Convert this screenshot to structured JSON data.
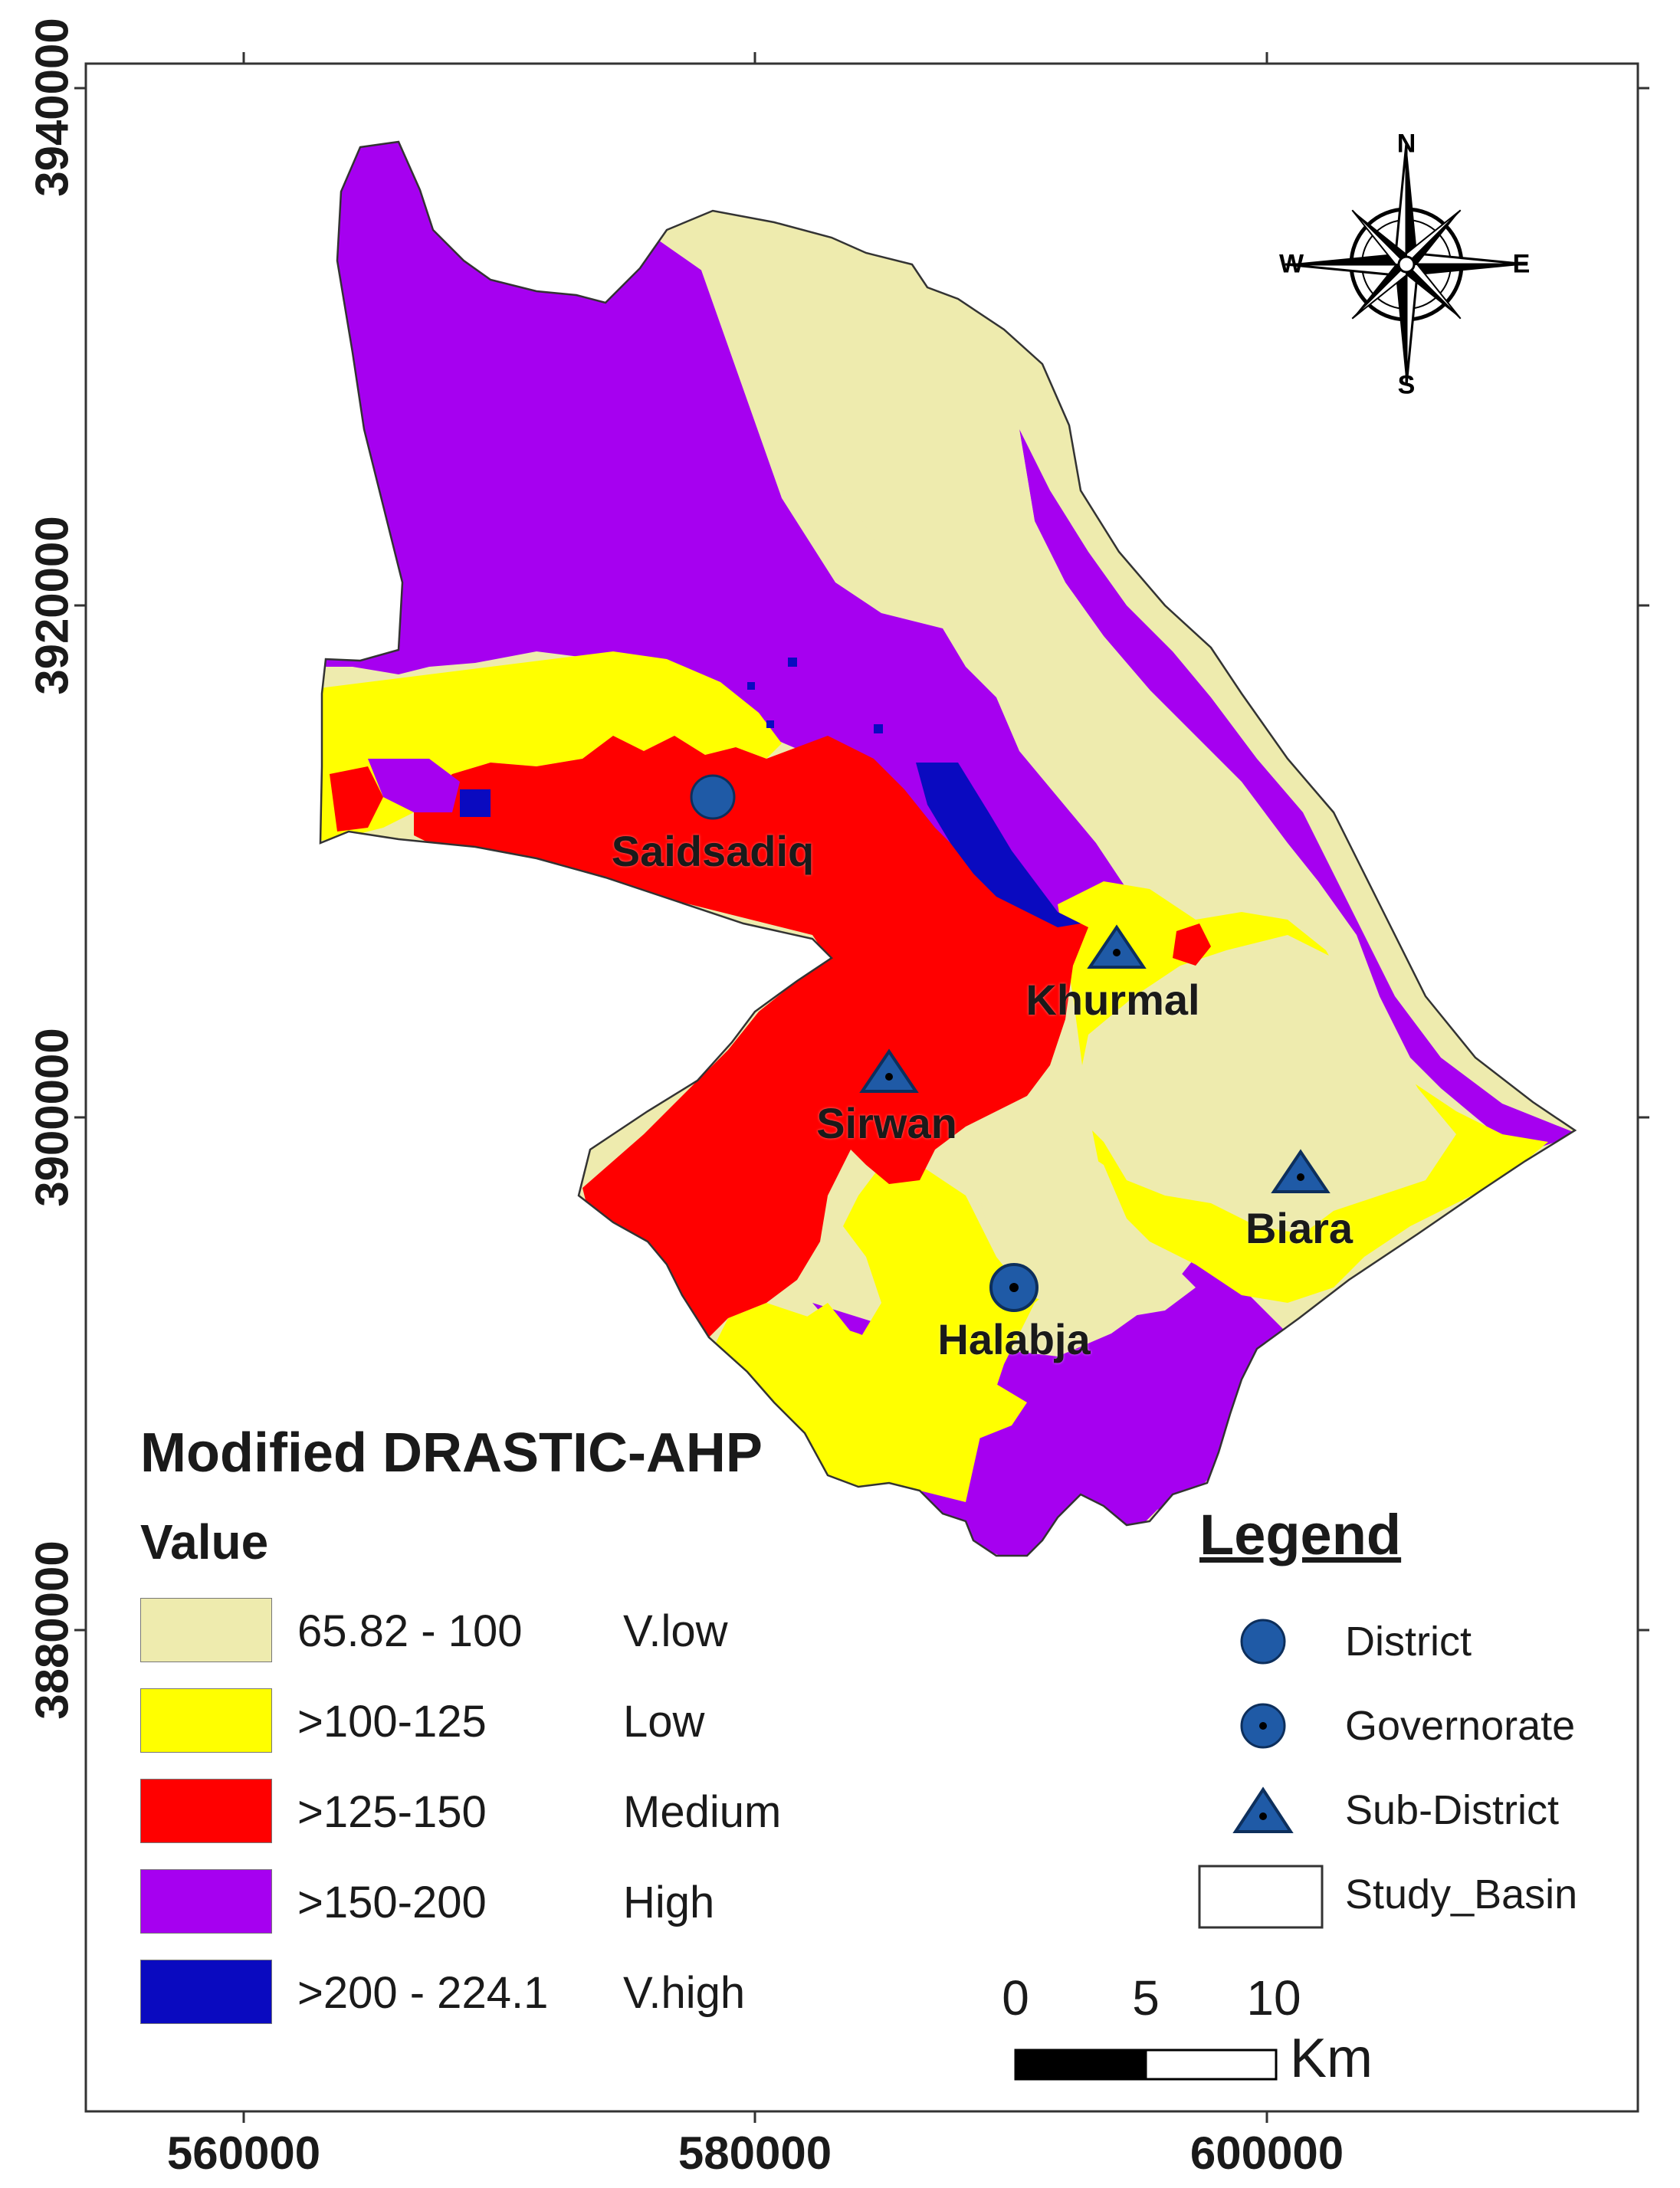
{
  "axes": {
    "x_labels": [
      "560000",
      "580000",
      "600000"
    ],
    "y_labels": [
      "3940000",
      "3920000",
      "3900000",
      "3880000"
    ]
  },
  "compass": {
    "n": "N",
    "s": "S",
    "e": "E",
    "w": "W"
  },
  "places": {
    "saidsadiq": "Saidsadiq",
    "khurmal": "Khurmal",
    "sirwan": "Sirwan",
    "biara": "Biara",
    "halabja": "Halabja"
  },
  "classification": {
    "title": "Modified DRASTIC-AHP",
    "value_heading": "Value",
    "classes": [
      {
        "range": "65.82 - 100",
        "name": "V.low",
        "color": "#EEEBAE"
      },
      {
        "range": ">100-125",
        "name": "Low",
        "color": "#FFFF00"
      },
      {
        "range": ">125-150",
        "name": "Medium",
        "color": "#FF0000"
      },
      {
        "range": ">150-200",
        "name": "High",
        "color": "#A600F0"
      },
      {
        "range": ">200 - 224.1",
        "name": "V.high",
        "color": "#0A0AC0"
      }
    ]
  },
  "legend": {
    "title": "Legend",
    "items": [
      {
        "label": "District",
        "icon": "filled-circle-icon"
      },
      {
        "label": "Governorate",
        "icon": "circle-with-dot-icon"
      },
      {
        "label": "Sub-District",
        "icon": "triangle-with-dot-icon"
      },
      {
        "label": "Study_Basin",
        "icon": "outline-rectangle-icon"
      }
    ],
    "symbol_color": "#1F5AA6"
  },
  "scale_bar": {
    "labels": [
      "0",
      "5",
      "10"
    ],
    "unit": "Km"
  }
}
